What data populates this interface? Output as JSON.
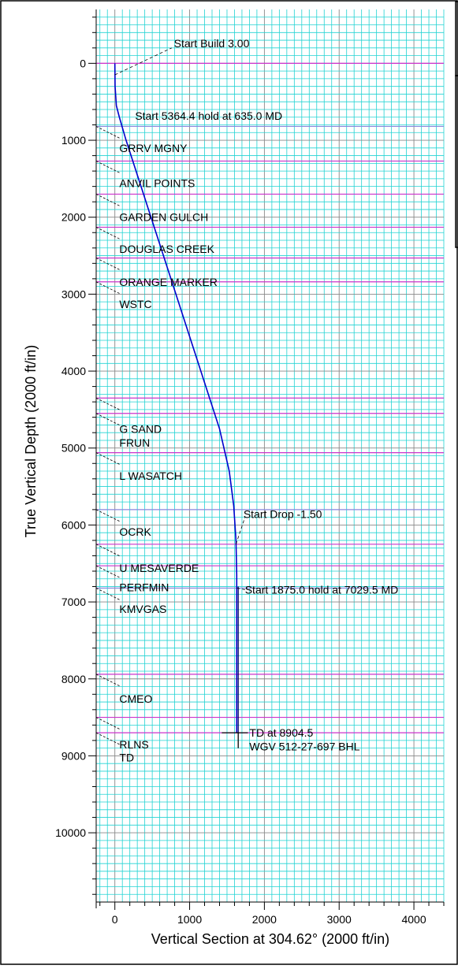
{
  "chart_data": {
    "type": "line",
    "xlabel": "Vertical Section at 304.62° (2000 ft/in)",
    "ylabel": "True Vertical Depth (2000 ft/in)",
    "xlim": [
      -250,
      4400
    ],
    "ylim": [
      10900,
      -700
    ],
    "x_ticks": [
      0,
      1000,
      2000,
      3000,
      4000
    ],
    "y_ticks": [
      0,
      1000,
      2000,
      3000,
      4000,
      5000,
      6000,
      7000,
      8000,
      9000,
      10000
    ],
    "grid": true,
    "series": [
      {
        "color": "#0000cc",
        "x": [
          0,
          3,
          20,
          60,
          150,
          300,
          450,
          600,
          800,
          1000,
          1200,
          1400,
          1530,
          1590,
          1620,
          1630,
          1630
        ],
        "y": [
          0,
          300,
          550,
          700,
          1000,
          1450,
          1900,
          2350,
          2950,
          3550,
          4150,
          4750,
          5300,
          5750,
          6200,
          6650,
          8700
        ]
      }
    ],
    "secondary_well": {
      "color": "#000066",
      "x": [
        1650,
        1650
      ],
      "y": [
        6800,
        8700
      ]
    },
    "horizontal_lines": [
      {
        "depth": 0,
        "color": "#cc33cc"
      },
      {
        "depth": 820,
        "color": "#8888dd"
      },
      {
        "depth": 1270,
        "color": "#cc33cc"
      },
      {
        "depth": 1700,
        "color": "#cc33cc"
      },
      {
        "depth": 2130,
        "color": "#cc33cc"
      },
      {
        "depth": 2530,
        "color": "#cc33cc"
      },
      {
        "depth": 2840,
        "color": "#cc33cc"
      },
      {
        "depth": 4350,
        "color": "#cc33cc"
      },
      {
        "depth": 4550,
        "color": "#cc33cc"
      },
      {
        "depth": 5060,
        "color": "#cc33cc"
      },
      {
        "depth": 5800,
        "color": "#8888dd"
      },
      {
        "depth": 6250,
        "color": "#cc33cc"
      },
      {
        "depth": 6530,
        "color": "#cc33cc"
      },
      {
        "depth": 6820,
        "color": "#8888dd"
      },
      {
        "depth": 7940,
        "color": "#cc33cc"
      },
      {
        "depth": 8500,
        "color": "#cc33cc"
      },
      {
        "depth": 8700,
        "color": "#cc33cc"
      }
    ],
    "formations": [
      {
        "label": "GRRV MGNY",
        "depth": 1100,
        "x": 60
      },
      {
        "label": "ANVIL POINTS",
        "depth": 1560,
        "x": 60
      },
      {
        "label": "GARDEN GULCH",
        "depth": 2000,
        "x": 60
      },
      {
        "label": "DOUGLAS CREEK",
        "depth": 2410,
        "x": 60
      },
      {
        "label": "ORANGE MARKER",
        "depth": 2840,
        "x": 60
      },
      {
        "label": "WSTC",
        "depth": 3130,
        "x": 60
      },
      {
        "label": "G SAND",
        "depth": 4750,
        "x": 60
      },
      {
        "label": "FRUN",
        "depth": 4930,
        "x": 60
      },
      {
        "label": "L WASATCH",
        "depth": 5360,
        "x": 60
      },
      {
        "label": "OCRK",
        "depth": 6090,
        "x": 60
      },
      {
        "label": "U MESAVERDE",
        "depth": 6560,
        "x": 60
      },
      {
        "label": "PERFMIN",
        "depth": 6810,
        "x": 60
      },
      {
        "label": "KMVGAS",
        "depth": 7090,
        "x": 60
      },
      {
        "label": "CMEO",
        "depth": 8260,
        "x": 60
      },
      {
        "label": "RLNS",
        "depth": 8850,
        "x": 60
      },
      {
        "label": "TD",
        "depth": 9020,
        "x": 60
      }
    ],
    "annotations": [
      {
        "text": "Start Build 3.00",
        "x": 790,
        "y": -260
      },
      {
        "text": "Start 5364.4 hold at 635.0 MD",
        "x": 270,
        "y": 680
      },
      {
        "text": "Start Drop -1.50",
        "x": 1720,
        "y": 5860
      },
      {
        "text": "Start 1875.0 hold at 7029.5 MD",
        "x": 1740,
        "y": 6840
      },
      {
        "text": "TD at 8904.5",
        "x": 1800,
        "y": 8700
      },
      {
        "text": "WGV 512-27-697 BHL",
        "x": 1800,
        "y": 8880
      }
    ]
  }
}
